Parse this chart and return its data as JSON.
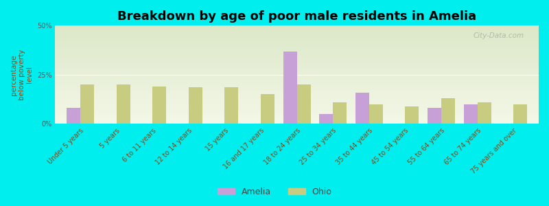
{
  "title": "Breakdown by age of poor male residents in Amelia",
  "ylabel": "percentage\nbelow poverty\nlevel",
  "categories": [
    "Under 5 years",
    "5 years",
    "6 to 11 years",
    "12 to 14 years",
    "15 years",
    "16 and 17 years",
    "18 to 24 years",
    "25 to 34 years",
    "35 to 44 years",
    "45 to 54 years",
    "55 to 64 years",
    "65 to 74 years",
    "75 years and over"
  ],
  "amelia_values": [
    8.0,
    0.0,
    0.0,
    0.0,
    0.0,
    0.0,
    37.0,
    5.0,
    16.0,
    0.0,
    8.0,
    10.0,
    0.0
  ],
  "ohio_values": [
    20.0,
    20.0,
    19.0,
    18.5,
    18.5,
    15.0,
    20.0,
    11.0,
    10.0,
    9.0,
    13.0,
    11.0,
    10.0
  ],
  "amelia_color": "#c8a0d8",
  "ohio_color": "#c8cc80",
  "bg_color": "#00eeee",
  "plot_bg_top": "#dce8c8",
  "plot_bg_bottom": "#f4f8e8",
  "ylim": [
    0,
    50
  ],
  "yticks": [
    0,
    25,
    50
  ],
  "ytick_labels": [
    "0%",
    "25%",
    "50%"
  ],
  "bar_width": 0.38,
  "watermark": "City-Data.com",
  "legend_amelia": "Amelia",
  "legend_ohio": "Ohio",
  "title_fontsize": 13,
  "label_fontsize": 7.5,
  "tick_fontsize": 7,
  "xtick_color": "#8B4513",
  "ytick_color": "#555555",
  "ylabel_color": "#8B4513"
}
